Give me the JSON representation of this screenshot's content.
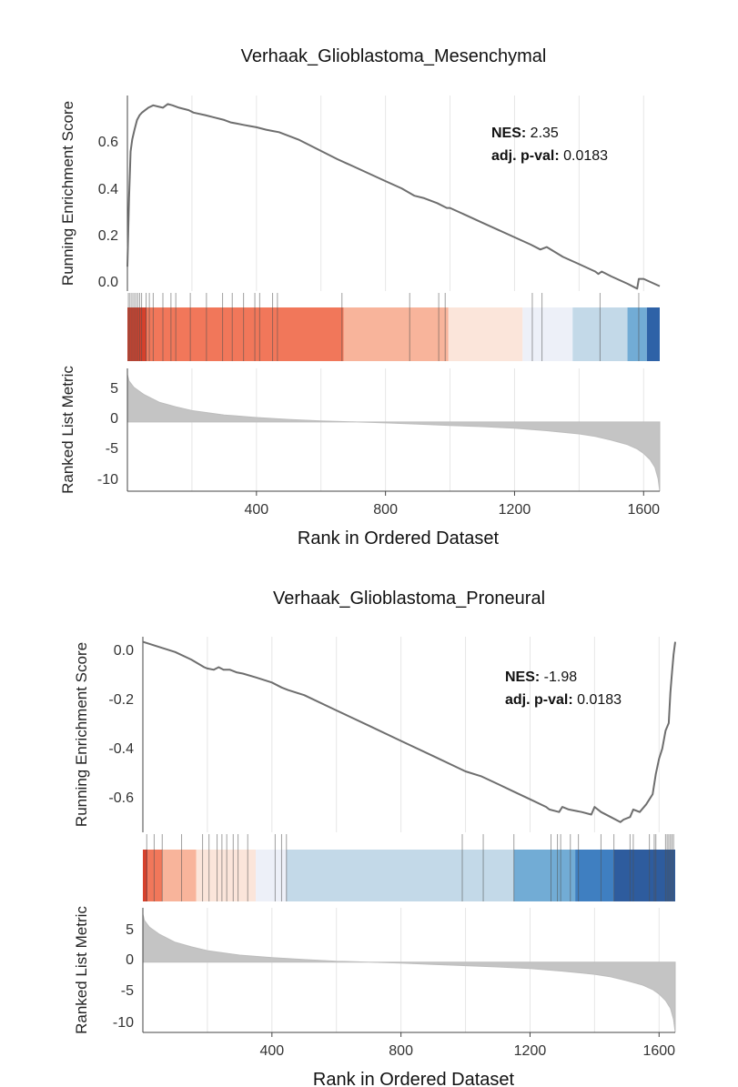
{
  "chart_data": [
    {
      "type": "line",
      "title": "Verhaak_Glioblastoma_Mesenchymal",
      "es_ylabel": "Running Enrichment Score",
      "metric_ylabel": "Ranked List Metric",
      "xlabel": "Rank in Ordered Dataset",
      "nes_label": "NES:",
      "nes_value": "2.35",
      "pval_label": "adj. p-val:",
      "pval_value": "0.0183",
      "x_ticks": [
        "400",
        "800",
        "1200",
        "1600"
      ],
      "es_ticks": [
        "0.6",
        "0.4",
        "0.2",
        "0.0"
      ],
      "metric_ticks": [
        "5",
        "0",
        "-5",
        "-10"
      ],
      "xlim": [
        0,
        1650
      ],
      "es_ylim": [
        -0.02,
        0.78
      ],
      "metric_ylim": [
        -11,
        8.5
      ],
      "es_curve": {
        "x": [
          0,
          5,
          10,
          15,
          22,
          30,
          38,
          45,
          55,
          65,
          80,
          95,
          110,
          125,
          140,
          160,
          190,
          205,
          240,
          270,
          300,
          320,
          340,
          360,
          380,
          400,
          430,
          450,
          470,
          530,
          590,
          650,
          700,
          750,
          800,
          850,
          890,
          920,
          960,
          990,
          1000,
          1050,
          1100,
          1150,
          1200,
          1250,
          1280,
          1300,
          1350,
          1400,
          1450,
          1460,
          1470,
          1500,
          1550,
          1580,
          1585,
          1600,
          1650
        ],
        "y": [
          0.08,
          0.36,
          0.55,
          0.6,
          0.64,
          0.68,
          0.7,
          0.71,
          0.72,
          0.73,
          0.74,
          0.735,
          0.73,
          0.745,
          0.74,
          0.73,
          0.72,
          0.71,
          0.7,
          0.69,
          0.68,
          0.67,
          0.665,
          0.66,
          0.655,
          0.65,
          0.64,
          0.635,
          0.63,
          0.6,
          0.56,
          0.52,
          0.49,
          0.46,
          0.43,
          0.4,
          0.37,
          0.36,
          0.34,
          0.32,
          0.32,
          0.29,
          0.26,
          0.23,
          0.2,
          0.17,
          0.15,
          0.16,
          0.12,
          0.09,
          0.06,
          0.05,
          0.06,
          0.04,
          0.01,
          -0.01,
          0.03,
          0.03,
          0.0
        ]
      },
      "hits": [
        3,
        8,
        14,
        20,
        26,
        32,
        38,
        44,
        58,
        68,
        80,
        110,
        135,
        150,
        195,
        245,
        295,
        325,
        360,
        395,
        410,
        450,
        465,
        665,
        875,
        965,
        985,
        1255,
        1285,
        1465,
        1585
      ],
      "heat_bands": [
        {
          "x0": 0,
          "x1": 60,
          "color": "#d6412c"
        },
        {
          "x0": 60,
          "x1": 670,
          "color": "#f1775a"
        },
        {
          "x0": 670,
          "x1": 995,
          "color": "#f8b49b"
        },
        {
          "x0": 995,
          "x1": 1225,
          "color": "#fbe5da"
        },
        {
          "x0": 1225,
          "x1": 1380,
          "color": "#edf0f8"
        },
        {
          "x0": 1380,
          "x1": 1550,
          "color": "#c3d9e8"
        },
        {
          "x0": 1550,
          "x1": 1610,
          "color": "#72acd5"
        },
        {
          "x0": 1610,
          "x1": 1650,
          "color": "#2e62a7"
        }
      ],
      "metric_curve": {
        "x": [
          0,
          5,
          20,
          50,
          100,
          150,
          200,
          300,
          400,
          500,
          600,
          700,
          800,
          900,
          1000,
          1100,
          1200,
          1300,
          1400,
          1450,
          1500,
          1550,
          1580,
          1600,
          1620,
          1635,
          1645,
          1650
        ],
        "y": [
          7.5,
          6.5,
          5.5,
          4.4,
          3.1,
          2.4,
          1.8,
          1.1,
          0.7,
          0.4,
          0.15,
          0.0,
          -0.15,
          -0.35,
          -0.55,
          -0.75,
          -1.0,
          -1.4,
          -1.9,
          -2.3,
          -2.9,
          -3.6,
          -4.3,
          -5.0,
          -6.0,
          -7.2,
          -9.0,
          -11.0
        ]
      }
    },
    {
      "type": "line",
      "title": "Verhaak_Glioblastoma_Proneural",
      "es_ylabel": "Running Enrichment Score",
      "metric_ylabel": "Ranked List Metric",
      "xlabel": "Rank in Ordered Dataset",
      "nes_label": "NES:",
      "nes_value": "-1.98",
      "pval_label": "adj. p-val:",
      "pval_value": "0.0183",
      "x_ticks": [
        "400",
        "800",
        "1200",
        "1600"
      ],
      "es_ticks": [
        "0.0",
        "-0.2",
        "-0.4",
        "-0.6"
      ],
      "metric_ticks": [
        "5",
        "0",
        "-5",
        "-10"
      ],
      "xlim": [
        0,
        1650
      ],
      "es_ylim": [
        -0.75,
        0.02
      ],
      "metric_ylim": [
        -11,
        8.5
      ],
      "es_curve": {
        "x": [
          0,
          50,
          100,
          150,
          190,
          200,
          220,
          235,
          250,
          270,
          290,
          310,
          350,
          400,
          430,
          450,
          500,
          600,
          700,
          800,
          900,
          1000,
          1050,
          1100,
          1150,
          1200,
          1250,
          1260,
          1290,
          1300,
          1320,
          1360,
          1390,
          1400,
          1420,
          1450,
          1480,
          1490,
          1510,
          1520,
          1540,
          1560,
          1580,
          1590,
          1600,
          1610,
          1620,
          1630,
          1635,
          1640,
          1645,
          1650
        ],
        "y": [
          0.0,
          -0.02,
          -0.04,
          -0.07,
          -0.1,
          -0.105,
          -0.11,
          -0.1,
          -0.11,
          -0.11,
          -0.12,
          -0.125,
          -0.14,
          -0.16,
          -0.18,
          -0.19,
          -0.21,
          -0.27,
          -0.33,
          -0.39,
          -0.45,
          -0.51,
          -0.53,
          -0.56,
          -0.59,
          -0.62,
          -0.65,
          -0.66,
          -0.67,
          -0.65,
          -0.66,
          -0.67,
          -0.68,
          -0.65,
          -0.67,
          -0.69,
          -0.71,
          -0.7,
          -0.69,
          -0.66,
          -0.67,
          -0.64,
          -0.6,
          -0.52,
          -0.46,
          -0.42,
          -0.35,
          -0.32,
          -0.2,
          -0.12,
          -0.05,
          0.0
        ]
      },
      "hits": [
        12,
        35,
        60,
        120,
        185,
        205,
        230,
        245,
        260,
        280,
        295,
        325,
        410,
        430,
        445,
        990,
        1055,
        1150,
        1265,
        1285,
        1295,
        1325,
        1350,
        1420,
        1460,
        1510,
        1520,
        1570,
        1585,
        1590,
        1620,
        1625,
        1630,
        1635,
        1640,
        1645
      ],
      "heat_bands": [
        {
          "x0": 0,
          "x1": 15,
          "color": "#d6412c"
        },
        {
          "x0": 15,
          "x1": 60,
          "color": "#f1775a"
        },
        {
          "x0": 60,
          "x1": 165,
          "color": "#f8b49b"
        },
        {
          "x0": 165,
          "x1": 350,
          "color": "#fbe5da"
        },
        {
          "x0": 350,
          "x1": 445,
          "color": "#edf0f8"
        },
        {
          "x0": 445,
          "x1": 1150,
          "color": "#c3d9e8"
        },
        {
          "x0": 1150,
          "x1": 1340,
          "color": "#72acd5"
        },
        {
          "x0": 1340,
          "x1": 1460,
          "color": "#3f7fc1"
        },
        {
          "x0": 1460,
          "x1": 1650,
          "color": "#2e5c9e"
        }
      ],
      "metric_curve": {
        "x": [
          0,
          5,
          20,
          50,
          100,
          150,
          200,
          300,
          400,
          500,
          600,
          700,
          800,
          900,
          1000,
          1100,
          1200,
          1300,
          1400,
          1450,
          1500,
          1550,
          1580,
          1600,
          1620,
          1635,
          1645,
          1650
        ],
        "y": [
          7.5,
          6.5,
          5.5,
          4.4,
          3.1,
          2.4,
          1.8,
          1.1,
          0.7,
          0.4,
          0.15,
          0.0,
          -0.15,
          -0.35,
          -0.55,
          -0.75,
          -1.0,
          -1.4,
          -1.9,
          -2.3,
          -2.9,
          -3.6,
          -4.3,
          -5.0,
          -6.0,
          -7.2,
          -9.0,
          -11.0
        ]
      }
    }
  ]
}
